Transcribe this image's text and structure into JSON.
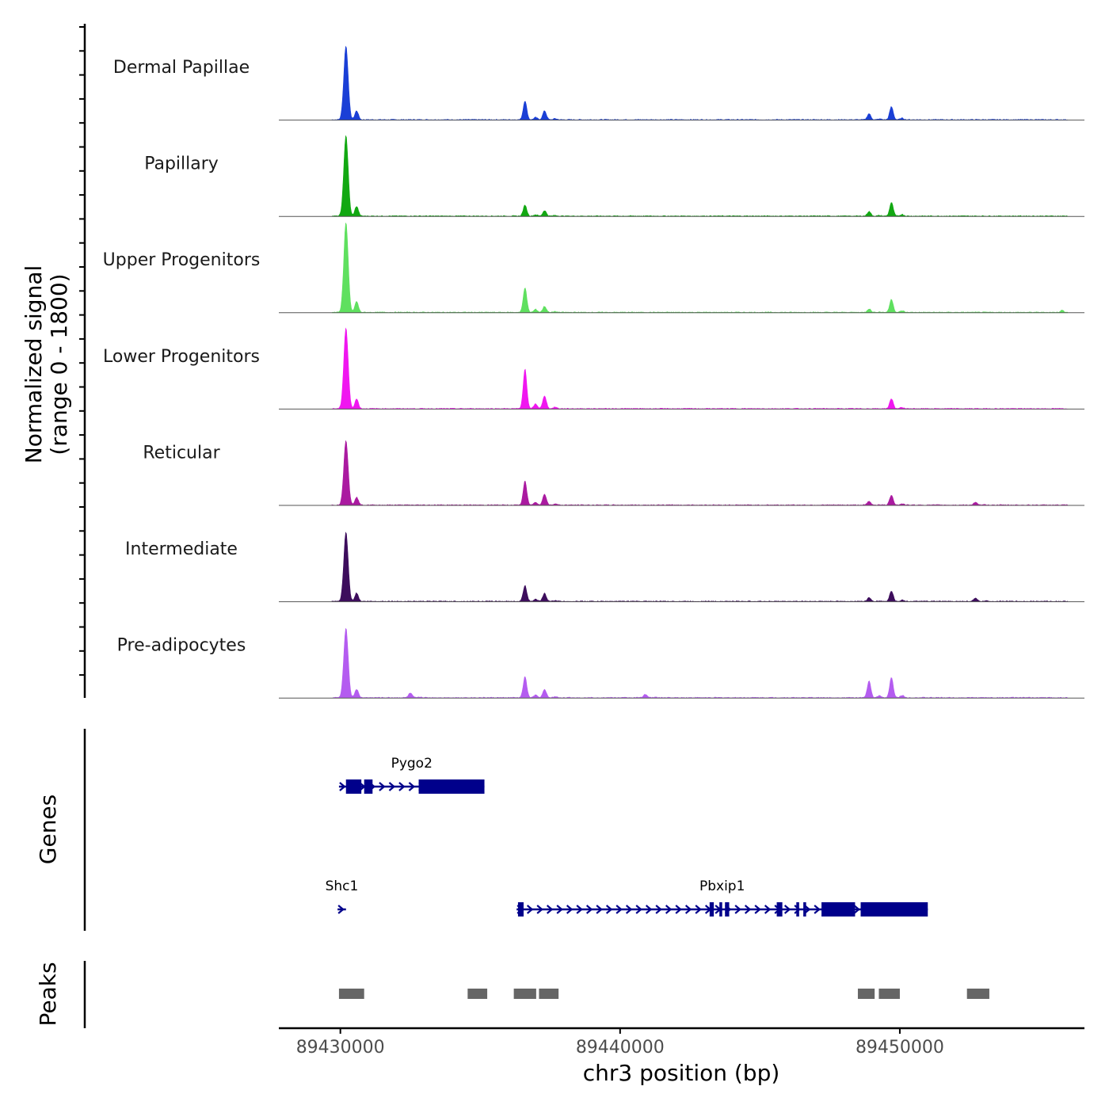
{
  "chart_data": {
    "type": "area",
    "title": "",
    "chromosome": "chr3",
    "xlabel": "chr3 position (bp)",
    "ylabel_line1": "Normalized signal",
    "ylabel_line2": "(range 0 - 1800)",
    "xlim": [
      89427800,
      89456600
    ],
    "ylim": [
      0,
      1800
    ],
    "x_ticks": [
      89430000,
      89440000,
      89450000
    ],
    "x_tick_labels": [
      "89430000",
      "89440000",
      "89450000"
    ],
    "series": [
      {
        "name": "Dermal Papillae",
        "color": "#1a3fd6",
        "peaks": [
          [
            89430200,
            1480
          ],
          [
            89436600,
            380
          ],
          [
            89437300,
            180
          ],
          [
            89448900,
            120
          ],
          [
            89449700,
            260
          ]
        ]
      },
      {
        "name": "Papillary",
        "color": "#12a812",
        "peaks": [
          [
            89430200,
            1620
          ],
          [
            89436600,
            220
          ],
          [
            89437300,
            110
          ],
          [
            89448900,
            90
          ],
          [
            89449700,
            270
          ]
        ]
      },
      {
        "name": "Upper Progenitors",
        "color": "#5fe05f",
        "peaks": [
          [
            89430200,
            1800
          ],
          [
            89436600,
            500
          ],
          [
            89437300,
            120
          ],
          [
            89448900,
            70
          ],
          [
            89449700,
            260
          ],
          [
            89455800,
            40
          ]
        ]
      },
      {
        "name": "Lower Progenitors",
        "color": "#f016f0",
        "peaks": [
          [
            89430200,
            1620
          ],
          [
            89436600,
            800
          ],
          [
            89437300,
            260
          ],
          [
            89449700,
            200
          ]
        ]
      },
      {
        "name": "Reticular",
        "color": "#aa1aa0",
        "peaks": [
          [
            89430200,
            1300
          ],
          [
            89436600,
            480
          ],
          [
            89437300,
            220
          ],
          [
            89448900,
            70
          ],
          [
            89449700,
            200
          ],
          [
            89452700,
            50
          ]
        ]
      },
      {
        "name": "Intermediate",
        "color": "#3d0d5c",
        "peaks": [
          [
            89430200,
            1390
          ],
          [
            89436600,
            320
          ],
          [
            89437300,
            160
          ],
          [
            89448900,
            70
          ],
          [
            89449700,
            210
          ],
          [
            89452700,
            60
          ]
        ]
      },
      {
        "name": "Pre-adipocytes",
        "color": "#b45cf0",
        "peaks": [
          [
            89430200,
            1400
          ],
          [
            89432500,
            90
          ],
          [
            89436600,
            420
          ],
          [
            89437300,
            160
          ],
          [
            89448900,
            330
          ],
          [
            89449700,
            400
          ],
          [
            89440900,
            70
          ]
        ]
      }
    ],
    "genes": [
      {
        "name": "Pygo2",
        "strand": "+",
        "start": 89429950,
        "end": 89435150,
        "exons": [
          [
            89430200,
            89430750
          ],
          [
            89430850,
            89431150
          ],
          [
            89432800,
            89435150
          ]
        ]
      },
      {
        "name": "Shc1",
        "strand": "+",
        "start": 89429900,
        "end": 89430200,
        "exons": []
      },
      {
        "name": "Pbxip1",
        "strand": "+",
        "start": 89436300,
        "end": 89451000,
        "exons": [
          [
            89436350,
            89436550
          ],
          [
            89443200,
            89443350
          ],
          [
            89443550,
            89443650
          ],
          [
            89443750,
            89443900
          ],
          [
            89445600,
            89445800
          ],
          [
            89446300,
            89446400
          ],
          [
            89446550,
            89446650
          ],
          [
            89447200,
            89448400
          ],
          [
            89448600,
            89451000
          ]
        ]
      }
    ],
    "peaks_track": [
      [
        89429950,
        89430850
      ],
      [
        89434550,
        89435250
      ],
      [
        89436200,
        89437000
      ],
      [
        89437100,
        89437800
      ],
      [
        89448500,
        89449100
      ],
      [
        89449250,
        89450000
      ],
      [
        89452400,
        89453200
      ]
    ],
    "genes_label": "Genes",
    "peaks_label": "Peaks"
  }
}
